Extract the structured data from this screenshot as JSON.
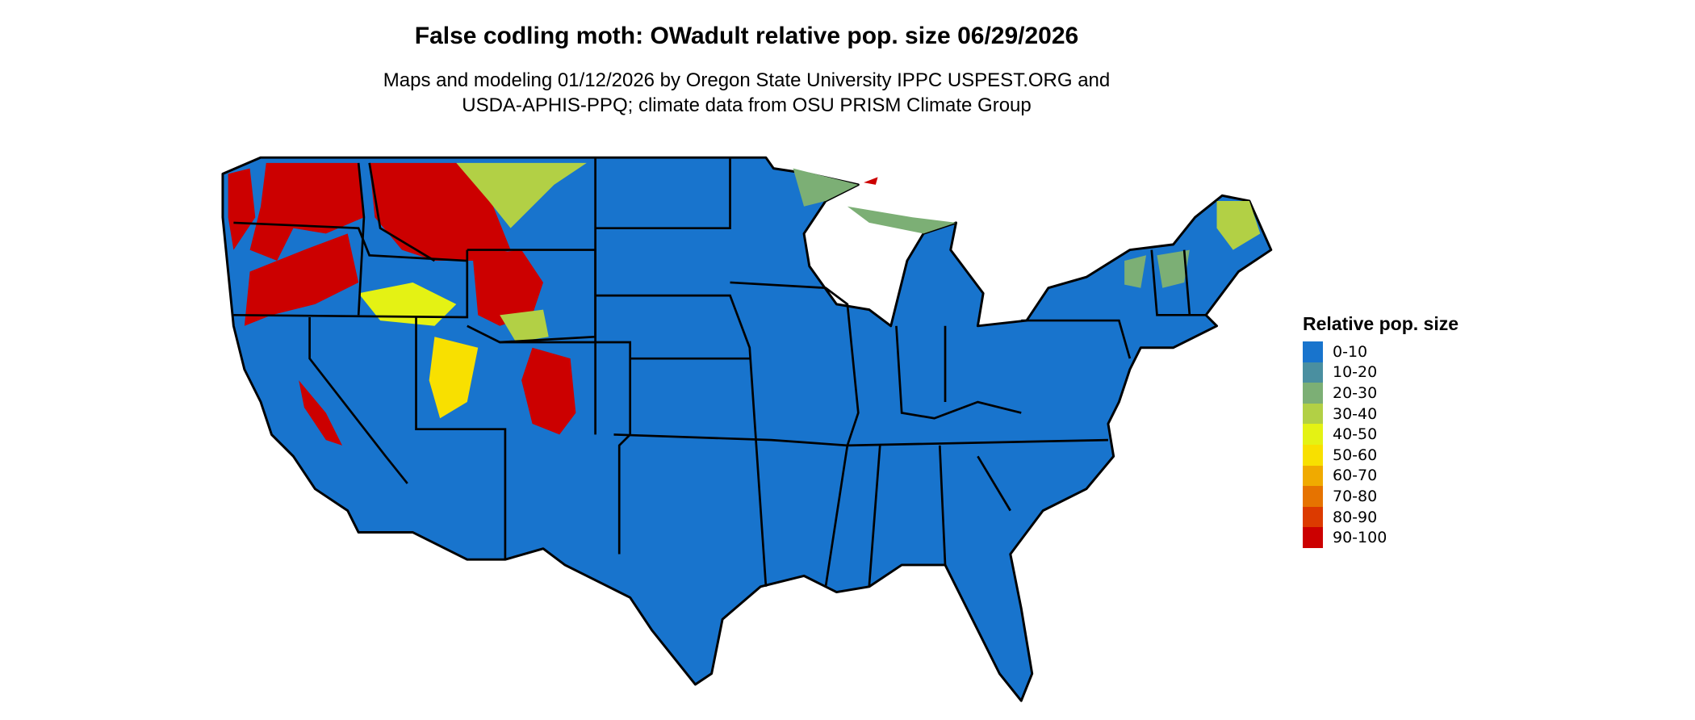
{
  "title": "False codling moth: OWadult relative pop. size 06/29/2026",
  "subtitle_line1": "Maps and modeling 01/12/2026 by Oregon State University IPPC USPEST.ORG and",
  "subtitle_line2": "USDA-APHIS-PPQ; climate data from OSU PRISM Climate Group",
  "legend": {
    "title": "Relative pop. size",
    "items": [
      {
        "label": "0-10",
        "color": "#1874cd"
      },
      {
        "label": "10-20",
        "color": "#4a8fa0"
      },
      {
        "label": "20-30",
        "color": "#7caf75"
      },
      {
        "label": "30-40",
        "color": "#b2d045"
      },
      {
        "label": "40-50",
        "color": "#e4f214"
      },
      {
        "label": "50-60",
        "color": "#f8e000"
      },
      {
        "label": "60-70",
        "color": "#f0aa00"
      },
      {
        "label": "70-80",
        "color": "#e67300"
      },
      {
        "label": "80-90",
        "color": "#dc3a00"
      },
      {
        "label": "90-100",
        "color": "#cc0000"
      }
    ]
  }
}
